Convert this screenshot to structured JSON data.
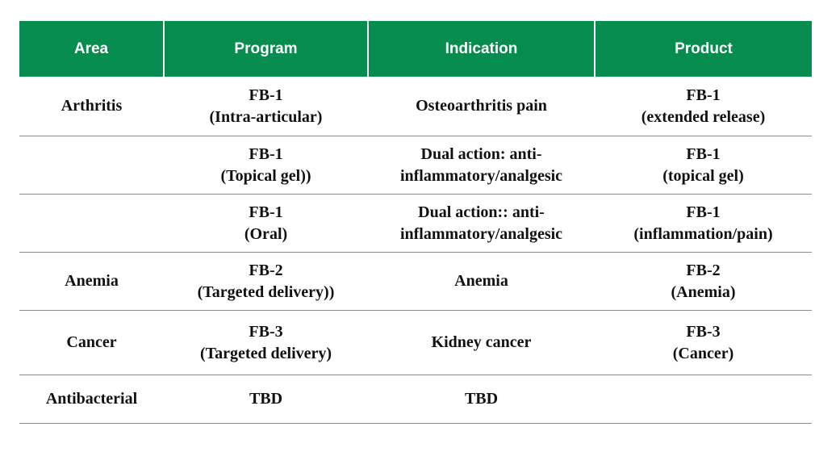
{
  "headers": {
    "area": "Area",
    "program": "Program",
    "indication": "Indication",
    "product": "Product"
  },
  "rows": [
    {
      "area": "Arthritis",
      "program": [
        "FB-1",
        "(Intra-articular)"
      ],
      "indication": [
        "Osteoarthritis pain"
      ],
      "product": [
        "FB-1",
        "(extended release)"
      ]
    },
    {
      "area": "",
      "program": [
        "FB-1",
        "(Topical gel))"
      ],
      "indication": [
        "Dual action: anti-",
        "inflammatory/analgesic"
      ],
      "product": [
        "FB-1",
        "(topical gel)"
      ]
    },
    {
      "area": "",
      "program": [
        "FB-1",
        "(Oral)"
      ],
      "indication": [
        "Dual action:: anti-",
        "inflammatory/analgesic"
      ],
      "product": [
        "FB-1",
        "(inflammation/pain)"
      ]
    },
    {
      "area": "Anemia",
      "program": [
        "FB-2",
        "(Targeted delivery))"
      ],
      "indication": [
        "Anemia"
      ],
      "product": [
        "FB-2",
        "(Anemia)"
      ]
    },
    {
      "area": "Cancer",
      "program": [
        "FB-3",
        "(Targeted delivery)"
      ],
      "indication": [
        "Kidney cancer"
      ],
      "product": [
        "FB-3",
        "(Cancer)"
      ]
    },
    {
      "area": "Antibacterial",
      "program": [
        "TBD"
      ],
      "indication": [
        "TBD"
      ],
      "product": []
    }
  ],
  "colors": {
    "header_bg": "#078c4f",
    "header_text": "#ffffff",
    "row_divider": "#8a8a8a"
  }
}
